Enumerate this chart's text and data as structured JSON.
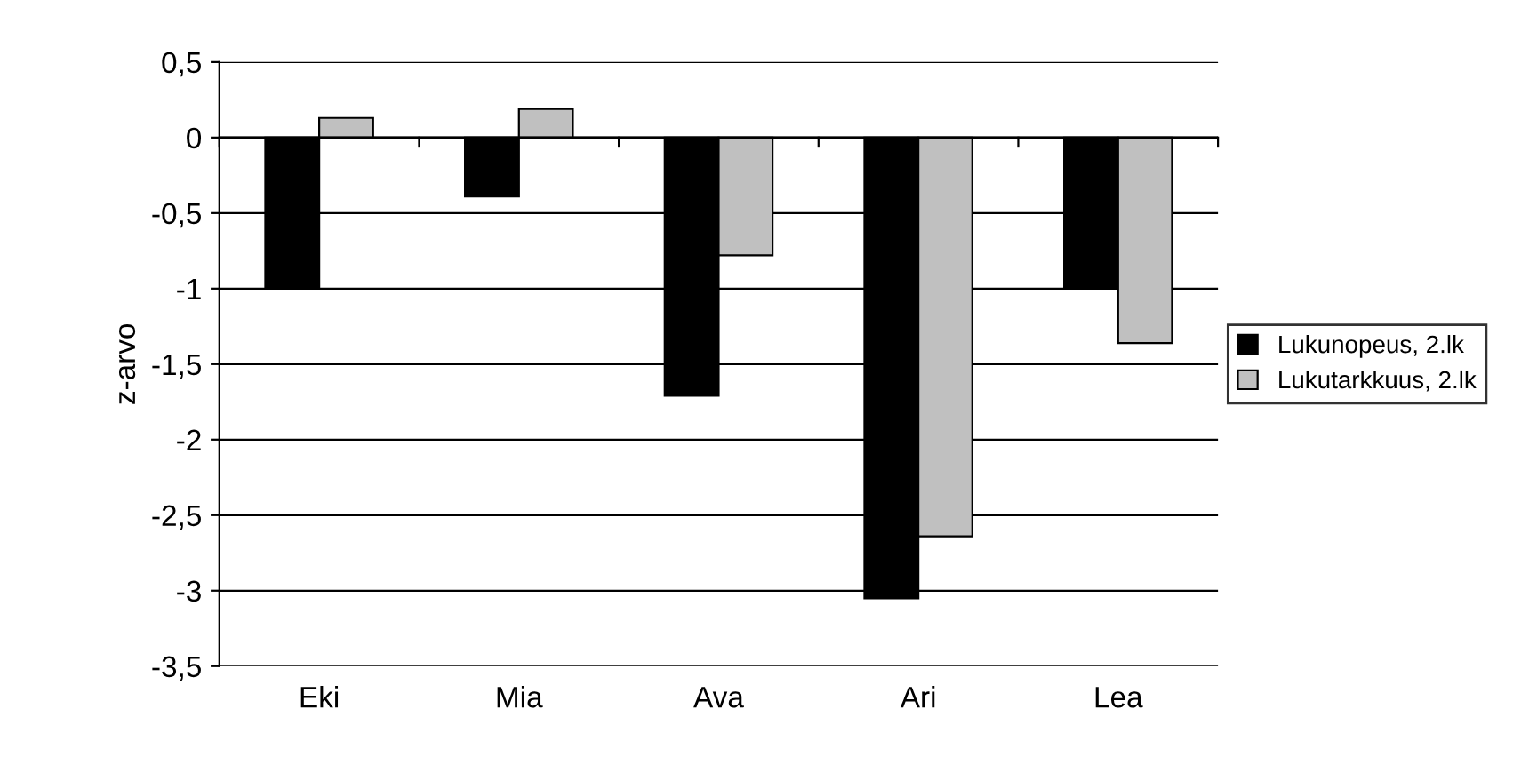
{
  "chart_data": {
    "type": "bar",
    "ylabel": "z-arvo",
    "categories": [
      "Eki",
      "Mia",
      "Ava",
      "Ari",
      "Lea"
    ],
    "series": [
      {
        "name": "Lukunopeus, 2.lk",
        "color": "#000000",
        "values": [
          -1.0,
          -0.39,
          -1.71,
          -3.05,
          -1.0
        ]
      },
      {
        "name": "Lukutarkkuus, 2.lk",
        "color": "#c0c0c0",
        "values": [
          0.13,
          0.19,
          -0.78,
          -2.64,
          -1.36
        ]
      }
    ],
    "ylim": [
      -3.5,
      0.5
    ],
    "yticks": [
      {
        "value": 0.5,
        "label": "0,5"
      },
      0,
      {
        "value": -0.5,
        "label": "-0,5"
      },
      -1,
      {
        "value": -1.5,
        "label": "-1,5"
      },
      -2,
      {
        "value": -2.5,
        "label": "-2,5"
      },
      -3,
      {
        "value": -3.5,
        "label": "-3,5"
      }
    ],
    "grid": "y",
    "legend": "right"
  }
}
